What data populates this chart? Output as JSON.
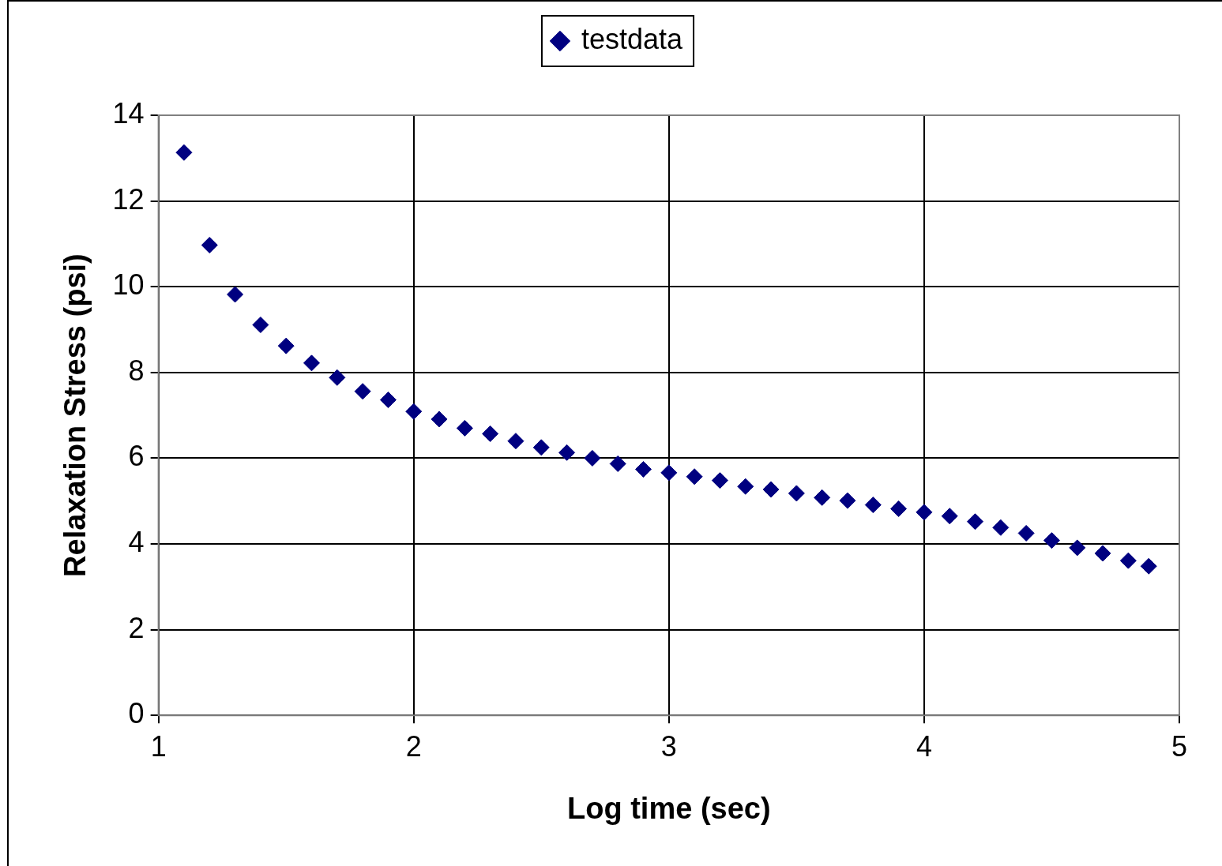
{
  "chart_data": {
    "type": "scatter",
    "xlabel": "Log time (sec)",
    "ylabel": "Relaxation Stress (psi)",
    "x": [
      1.1,
      1.2,
      1.3,
      1.4,
      1.5,
      1.6,
      1.7,
      1.8,
      1.9,
      2.0,
      2.1,
      2.2,
      2.3,
      2.4,
      2.5,
      2.6,
      2.7,
      2.8,
      2.9,
      3.0,
      3.1,
      3.2,
      3.3,
      3.4,
      3.5,
      3.6,
      3.7,
      3.8,
      3.9,
      4.0,
      4.1,
      4.2,
      4.3,
      4.4,
      4.5,
      4.6,
      4.7,
      4.8,
      4.88
    ],
    "series": [
      {
        "name": "testdata",
        "color": "#000080",
        "values": [
          13.13,
          10.97,
          9.82,
          9.11,
          8.62,
          8.22,
          7.88,
          7.56,
          7.36,
          7.09,
          6.91,
          6.7,
          6.57,
          6.4,
          6.25,
          6.13,
          6.0,
          5.87,
          5.74,
          5.66,
          5.57,
          5.48,
          5.34,
          5.27,
          5.18,
          5.08,
          5.01,
          4.91,
          4.82,
          4.74,
          4.65,
          4.52,
          4.38,
          4.25,
          4.08,
          3.91,
          3.78,
          3.61,
          3.48
        ]
      }
    ],
    "xlim": [
      1,
      5
    ],
    "xticks": [
      1,
      2,
      3,
      4,
      5
    ],
    "ylim": [
      0,
      14
    ],
    "yticks": [
      0,
      2,
      4,
      6,
      8,
      10,
      12,
      14
    ],
    "grid": true,
    "legend": "top",
    "marker": "diamond"
  }
}
